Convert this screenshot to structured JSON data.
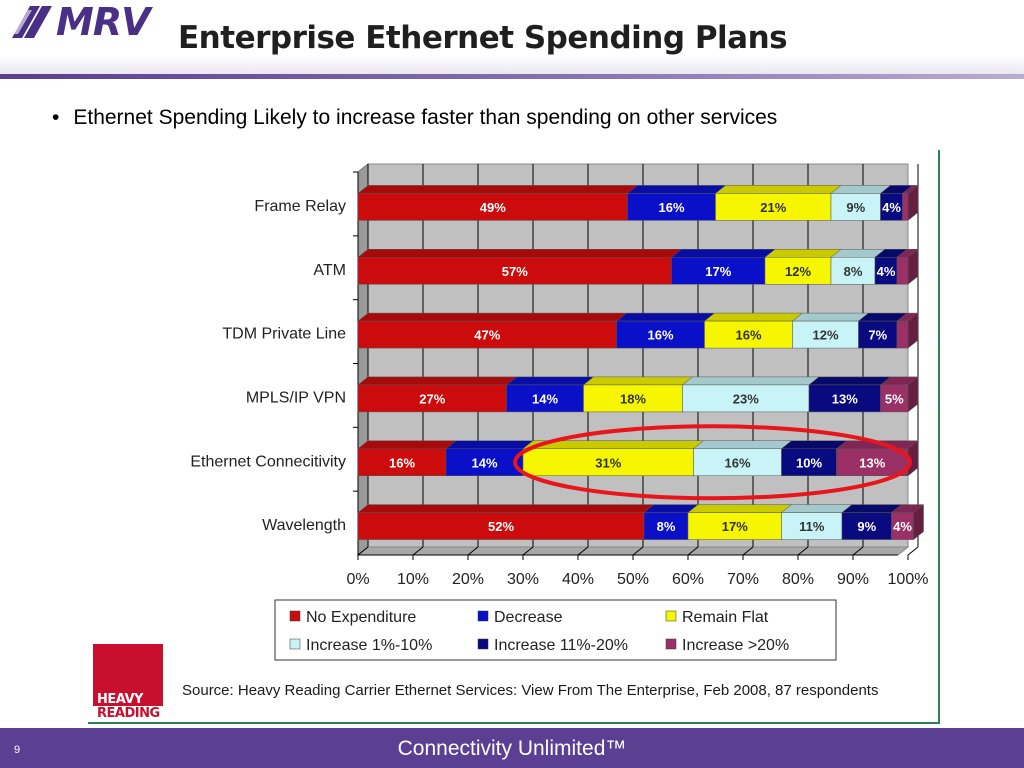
{
  "header": {
    "logo_text": "MRV",
    "title": "Enterprise Ethernet Spending Plans"
  },
  "bullet": "Ethernet Spending Likely to increase faster than spending on other services",
  "heavy_reading_logo": {
    "line1": "HEAVY",
    "line2": "READING"
  },
  "source": "Source: Heavy Reading Carrier Ethernet Services: View From The Enterprise, Feb 2008, 87 respondents",
  "footer": {
    "tagline": "Connectivity Unlimited™",
    "page_number": "9"
  },
  "colors": {
    "brand_purple": "#5b3f93",
    "highlight_ellipse": "#e8151b"
  },
  "chart_data": {
    "type": "bar",
    "orientation": "horizontal",
    "stacked": true,
    "percent_stacked": true,
    "categories": [
      "Frame Relay",
      "ATM",
      "TDM Private Line",
      "MPLS/IP VPN",
      "Ethernet Connecitivity",
      "Wavelength"
    ],
    "xlim": [
      0,
      100
    ],
    "x_ticks": [
      "0%",
      "10%",
      "20%",
      "30%",
      "40%",
      "50%",
      "60%",
      "70%",
      "80%",
      "90%",
      "100%"
    ],
    "grid": true,
    "legend_position": "bottom",
    "series": [
      {
        "name": "No Expenditure",
        "color": "#cc0c0c",
        "label_color": "#ffffff",
        "values": [
          49,
          57,
          47,
          27,
          16,
          52
        ]
      },
      {
        "name": "Decrease",
        "color": "#0a10c8",
        "label_color": "#ffffff",
        "values": [
          16,
          17,
          16,
          14,
          14,
          8
        ]
      },
      {
        "name": "Remain Flat",
        "color": "#f6f600",
        "label_color": "#333333",
        "values": [
          21,
          12,
          16,
          18,
          31,
          17
        ]
      },
      {
        "name": "Increase 1%-10%",
        "color": "#c8f4f8",
        "label_color": "#333333",
        "values": [
          9,
          8,
          12,
          23,
          16,
          11
        ]
      },
      {
        "name": "Increase 11%-20%",
        "color": "#0a0a80",
        "label_color": "#ffffff",
        "values": [
          4,
          4,
          7,
          13,
          10,
          9
        ]
      },
      {
        "name": "Increase >20%",
        "color": "#9b3066",
        "label_color": "#ffffff",
        "values": [
          1,
          2,
          2,
          5,
          13,
          4
        ]
      }
    ],
    "data_labels": [
      [
        "49%",
        "16%",
        "21%",
        "9%",
        "4%",
        ""
      ],
      [
        "57%",
        "17%",
        "12%",
        "8%",
        "4%",
        ""
      ],
      [
        "47%",
        "16%",
        "16%",
        "12%",
        "7%",
        ""
      ],
      [
        "27%",
        "14%",
        "18%",
        "23%",
        "13%",
        "5%"
      ],
      [
        "16%",
        "14%",
        "31%",
        "16%",
        "10%",
        "13%"
      ],
      [
        "52%",
        "8%",
        "17%",
        "11%",
        "9%",
        "4%"
      ]
    ],
    "annotation": {
      "shape": "ellipse",
      "category": "Ethernet Connecitivity",
      "x_range": [
        30,
        100
      ]
    }
  }
}
